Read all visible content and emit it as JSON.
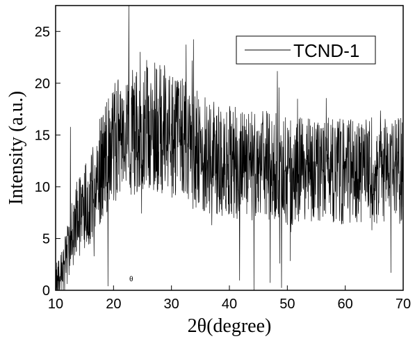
{
  "chart_data": {
    "type": "line",
    "xlabel": "2θ(degree)",
    "ylabel": "Intensity (a.u.)",
    "xlim": [
      10,
      70
    ],
    "ylim": [
      0,
      27.5
    ],
    "x_ticks": [
      10,
      20,
      30,
      40,
      50,
      60,
      70
    ],
    "y_ticks": [
      0,
      5,
      10,
      15,
      20,
      25
    ],
    "legend_position": "top-right",
    "grid": false,
    "series": [
      {
        "name": "TCND-1",
        "color": "#000000",
        "noisy": true,
        "x": [
          10,
          10.5,
          11,
          11.5,
          12,
          12.5,
          13,
          13.5,
          14,
          14.5,
          15,
          15.5,
          16,
          16.5,
          17,
          17.5,
          18,
          18.5,
          19,
          19.5,
          20,
          21,
          22,
          23,
          24,
          25,
          26,
          27,
          28,
          29,
          30,
          31,
          32,
          33,
          34,
          35,
          36,
          38,
          40,
          42,
          44,
          46,
          48,
          50,
          52,
          54,
          56,
          58,
          60,
          62,
          64,
          66,
          68,
          70
        ],
        "y": [
          0.5,
          1,
          1.5,
          2.5,
          3.5,
          4.5,
          5.5,
          6.5,
          7,
          7.5,
          8,
          8.5,
          9,
          10,
          11,
          11.5,
          12,
          12.5,
          13,
          13.5,
          14,
          14.5,
          15,
          15,
          15.5,
          15.5,
          16,
          16,
          15.5,
          15.5,
          15,
          15,
          14.5,
          14,
          13.5,
          13.5,
          13,
          12.5,
          12.5,
          12,
          12,
          12,
          12,
          11.5,
          11.5,
          11.5,
          11.5,
          11.5,
          11.5,
          11.5,
          11.5,
          11.5,
          11.5,
          11.5
        ]
      }
    ],
    "annotations": [
      "θ"
    ]
  }
}
